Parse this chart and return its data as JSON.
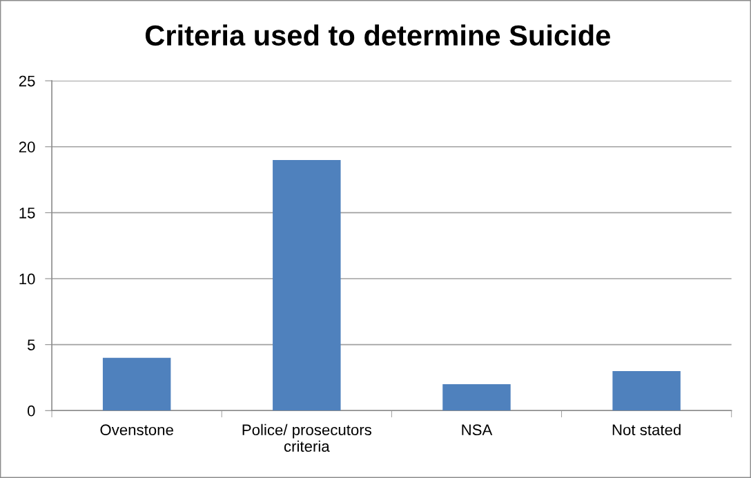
{
  "chart_data": {
    "type": "bar",
    "title": "Criteria used to determine Suicide",
    "categories": [
      "Ovenstone",
      "Police/ prosecutors\ncriteria",
      "NSA",
      "Not stated"
    ],
    "values": [
      4,
      19,
      2,
      3
    ],
    "color": "#4f81bd",
    "ylim": [
      0,
      25
    ],
    "yticks": [
      0,
      5,
      10,
      15,
      20,
      25
    ],
    "grid": "y",
    "legend": false
  }
}
